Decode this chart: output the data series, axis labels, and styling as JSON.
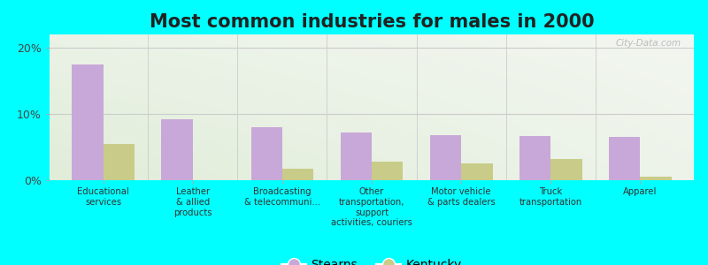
{
  "title": "Most common industries for males in 2000",
  "categories": [
    "Educational\nservices",
    "Leather\n& allied\nproducts",
    "Broadcasting\n& telecommuni...",
    "Other\ntransportation,\nsupport\nactivities, couriers",
    "Motor vehicle\n& parts dealers",
    "Truck\ntransportation",
    "Apparel"
  ],
  "stearns_values": [
    17.5,
    9.2,
    8.0,
    7.2,
    6.8,
    6.7,
    6.5
  ],
  "kentucky_values": [
    5.5,
    0.0,
    1.8,
    2.8,
    2.5,
    3.2,
    0.5
  ],
  "stearns_color": "#c8a8d8",
  "kentucky_color": "#c8cc88",
  "bar_width": 0.35,
  "ylim": [
    0,
    22
  ],
  "yticks": [
    0,
    10,
    20
  ],
  "ytick_labels": [
    "0%",
    "10%",
    "20%"
  ],
  "background_color": "#00ffff",
  "legend_stearns": "Stearns",
  "legend_kentucky": "Kentucky",
  "title_fontsize": 15,
  "watermark": "City-Data.com"
}
